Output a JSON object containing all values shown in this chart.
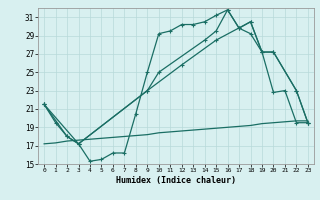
{
  "title": "",
  "xlabel": "Humidex (Indice chaleur)",
  "bg_color": "#d8f0f0",
  "grid_color": "#b8dada",
  "line_color": "#1a6e64",
  "xlim": [
    -0.5,
    23.5
  ],
  "ylim": [
    15,
    32
  ],
  "yticks": [
    15,
    17,
    19,
    21,
    23,
    25,
    27,
    29,
    31
  ],
  "xticks": [
    0,
    1,
    2,
    3,
    4,
    5,
    6,
    7,
    8,
    9,
    10,
    11,
    12,
    13,
    14,
    15,
    16,
    17,
    18,
    19,
    20,
    21,
    22,
    23
  ],
  "line1_x": [
    0,
    1,
    2,
    3,
    4,
    5,
    6,
    7,
    8,
    9,
    10,
    11,
    12,
    13,
    14,
    15,
    16,
    17,
    18,
    19,
    20,
    21,
    22,
    23
  ],
  "line1_y": [
    21.5,
    19.5,
    18.0,
    17.2,
    15.3,
    15.5,
    16.2,
    16.2,
    20.5,
    25.0,
    29.2,
    29.5,
    30.2,
    30.2,
    30.5,
    31.2,
    31.8,
    29.8,
    29.2,
    27.2,
    22.8,
    23.0,
    19.5,
    19.5
  ],
  "line2_x": [
    0,
    2,
    3,
    9,
    10,
    14,
    15,
    16,
    17,
    18,
    19,
    20,
    22,
    23
  ],
  "line2_y": [
    21.5,
    18.0,
    17.2,
    23.0,
    25.0,
    28.5,
    29.5,
    31.8,
    29.8,
    30.5,
    27.2,
    27.2,
    23.0,
    19.5
  ],
  "line3_x": [
    0,
    1,
    2,
    3,
    4,
    5,
    6,
    7,
    8,
    9,
    10,
    11,
    12,
    13,
    14,
    15,
    16,
    17,
    18,
    19,
    20,
    21,
    22,
    23
  ],
  "line3_y": [
    17.2,
    17.3,
    17.5,
    17.6,
    17.7,
    17.8,
    17.9,
    18.0,
    18.1,
    18.2,
    18.4,
    18.5,
    18.6,
    18.7,
    18.8,
    18.9,
    19.0,
    19.1,
    19.2,
    19.4,
    19.5,
    19.6,
    19.7,
    19.7
  ],
  "line4_x": [
    0,
    3,
    9,
    12,
    15,
    18,
    19,
    20,
    22,
    23
  ],
  "line4_y": [
    21.5,
    17.2,
    23.0,
    25.8,
    28.5,
    30.5,
    27.2,
    27.2,
    23.0,
    19.5
  ]
}
